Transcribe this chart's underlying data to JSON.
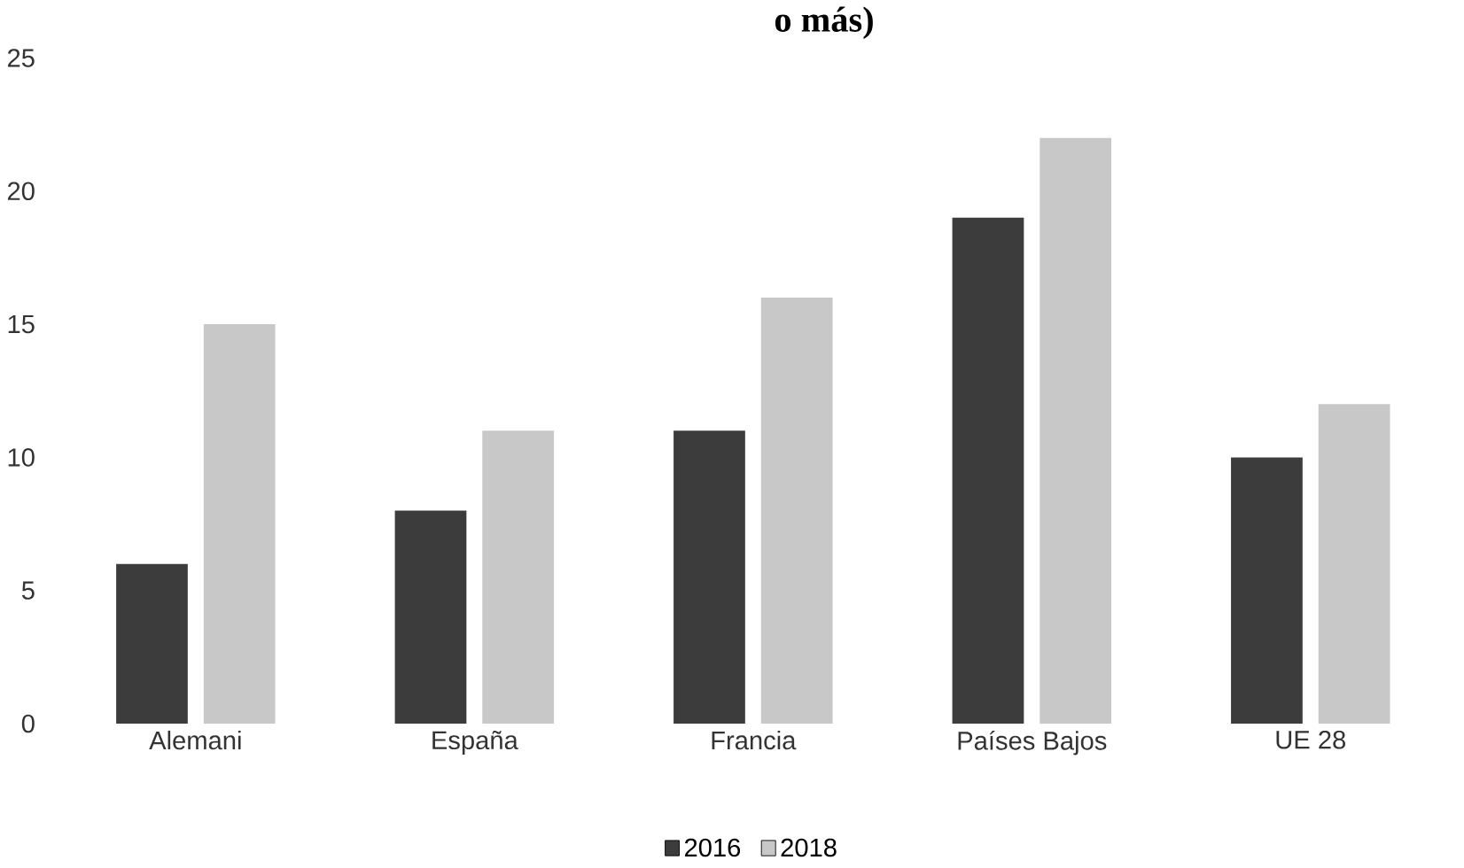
{
  "chart_data": {
    "type": "bar",
    "title": "o más)",
    "categories": [
      "Alemani",
      "España",
      "Francia",
      "Países Bajos",
      "UE 28"
    ],
    "series": [
      {
        "name": "2016",
        "color": "#3c3c3c",
        "values": [
          6,
          8,
          11,
          19,
          10
        ]
      },
      {
        "name": "2018",
        "color": "#c8c8c8",
        "values": [
          15,
          11,
          16,
          22,
          12
        ]
      }
    ],
    "ylim": [
      0,
      25
    ],
    "yticks": [
      0,
      5,
      10,
      15,
      20,
      25
    ],
    "grid": false,
    "legend": "bottom"
  }
}
